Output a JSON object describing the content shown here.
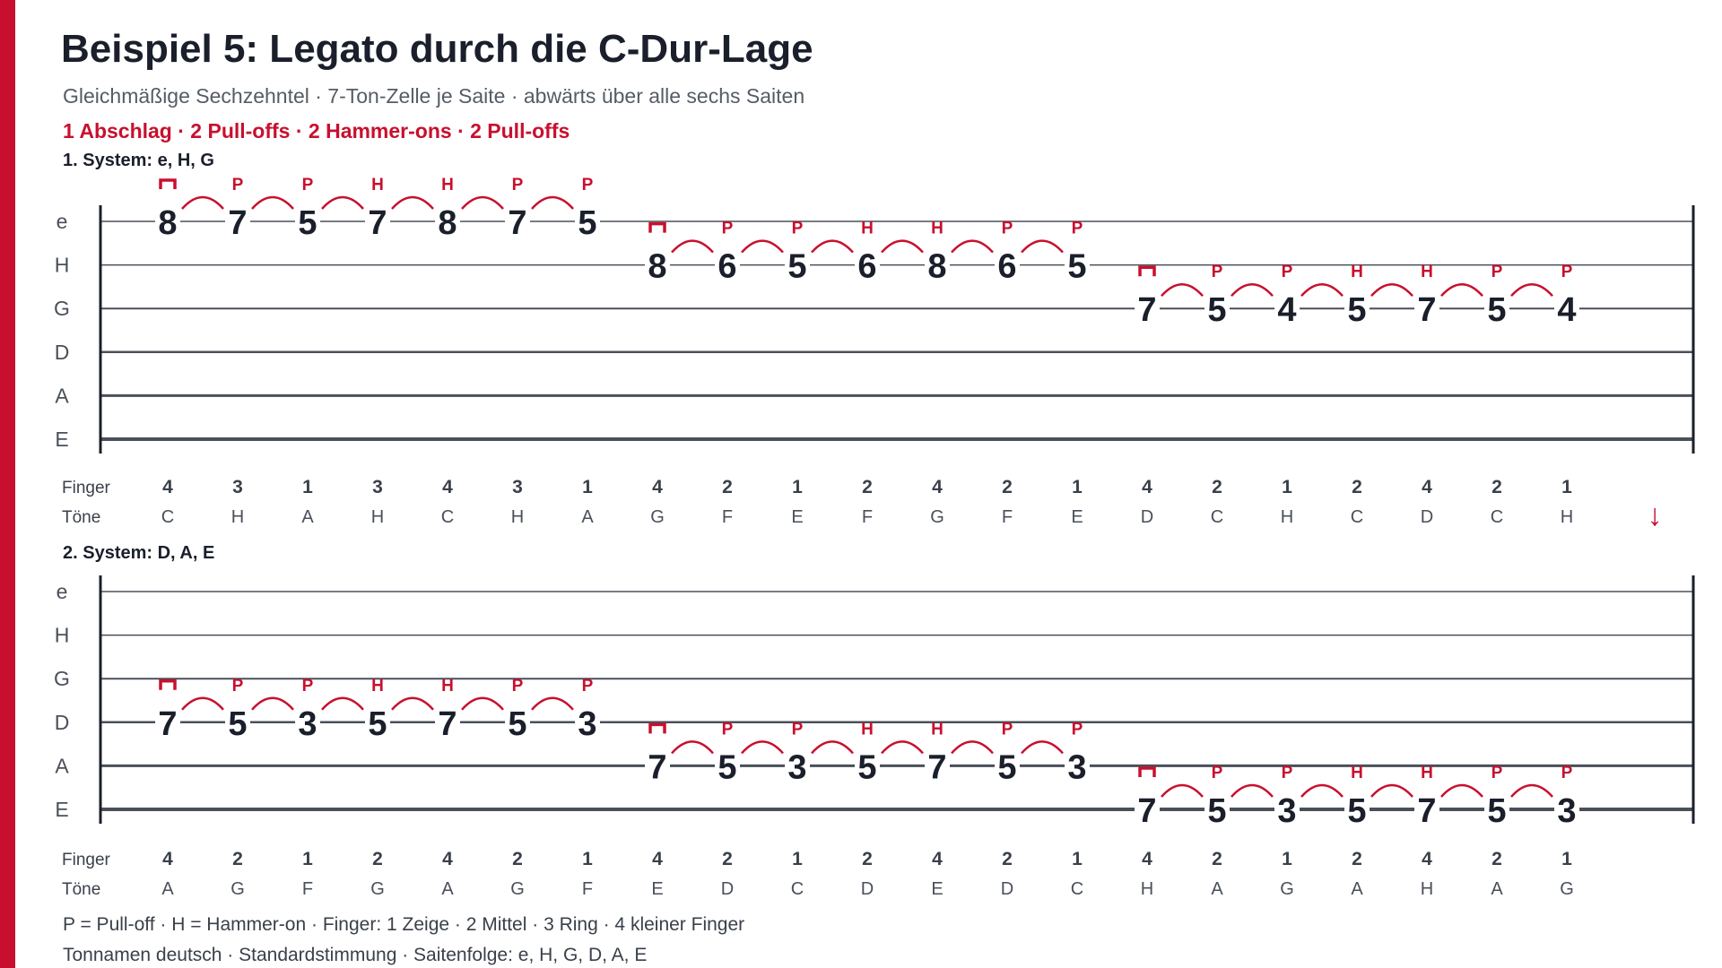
{
  "title": "Beispiel 5: Legato durch die C-Dur-Lage",
  "subtitle": "Gleichmäßige Sechzehntel · 7-Ton-Zelle je Saite · abwärts über alle sechs Saiten",
  "technique_line": "1 Abschlag · 2 Pull-offs · 2 Hammer-ons · 2 Pull-offs",
  "accent_color": "#c8102e",
  "text_color": "#1a1f2b",
  "row_labels": {
    "finger": "Finger",
    "tones": "Töne"
  },
  "continue_arrow": "↓",
  "downstroke_symbol": "⊓",
  "systems": [
    {
      "label": "1. System: e, H, G",
      "string_names": [
        "e",
        "H",
        "G",
        "D",
        "A",
        "E"
      ],
      "cells": [
        {
          "string": "e",
          "frets": [
            "8",
            "7",
            "5",
            "7",
            "8",
            "7",
            "5"
          ],
          "marks": [
            "⊓",
            "P",
            "P",
            "H",
            "H",
            "P",
            "P"
          ]
        },
        {
          "string": "H",
          "frets": [
            "8",
            "6",
            "5",
            "6",
            "8",
            "6",
            "5"
          ],
          "marks": [
            "⊓",
            "P",
            "P",
            "H",
            "H",
            "P",
            "P"
          ]
        },
        {
          "string": "G",
          "frets": [
            "7",
            "5",
            "4",
            "5",
            "7",
            "5",
            "4"
          ],
          "marks": [
            "⊓",
            "P",
            "P",
            "H",
            "H",
            "P",
            "P"
          ]
        }
      ],
      "fingers": [
        "4",
        "3",
        "1",
        "3",
        "4",
        "3",
        "1",
        "4",
        "2",
        "1",
        "2",
        "4",
        "2",
        "1",
        "4",
        "2",
        "1",
        "2",
        "4",
        "2",
        "1"
      ],
      "tones": [
        "C",
        "H",
        "A",
        "H",
        "C",
        "H",
        "A",
        "G",
        "F",
        "E",
        "F",
        "G",
        "F",
        "E",
        "D",
        "C",
        "H",
        "C",
        "D",
        "C",
        "H"
      ]
    },
    {
      "label": "2. System: D, A, E",
      "string_names": [
        "e",
        "H",
        "G",
        "D",
        "A",
        "E"
      ],
      "cells": [
        {
          "string": "D",
          "frets": [
            "7",
            "5",
            "3",
            "5",
            "7",
            "5",
            "3"
          ],
          "marks": [
            "⊓",
            "P",
            "P",
            "H",
            "H",
            "P",
            "P"
          ]
        },
        {
          "string": "A",
          "frets": [
            "7",
            "5",
            "3",
            "5",
            "7",
            "5",
            "3"
          ],
          "marks": [
            "⊓",
            "P",
            "P",
            "H",
            "H",
            "P",
            "P"
          ]
        },
        {
          "string": "E",
          "frets": [
            "7",
            "5",
            "3",
            "5",
            "7",
            "5",
            "3"
          ],
          "marks": [
            "⊓",
            "P",
            "P",
            "H",
            "H",
            "P",
            "P"
          ]
        }
      ],
      "fingers": [
        "4",
        "2",
        "1",
        "2",
        "4",
        "2",
        "1",
        "4",
        "2",
        "1",
        "2",
        "4",
        "2",
        "1",
        "4",
        "2",
        "1",
        "2",
        "4",
        "2",
        "1"
      ],
      "tones": [
        "A",
        "G",
        "F",
        "G",
        "A",
        "G",
        "F",
        "E",
        "D",
        "C",
        "D",
        "E",
        "D",
        "C",
        "H",
        "A",
        "G",
        "A",
        "H",
        "A",
        "G"
      ]
    }
  ],
  "legend_1": "P = Pull-off · H = Hammer-on · Finger: 1 Zeige · 2 Mittel · 3 Ring · 4 kleiner Finger",
  "legend_2": "Tonnamen deutsch · Standardstimmung · Saitenfolge: e, H, G, D, A, E"
}
